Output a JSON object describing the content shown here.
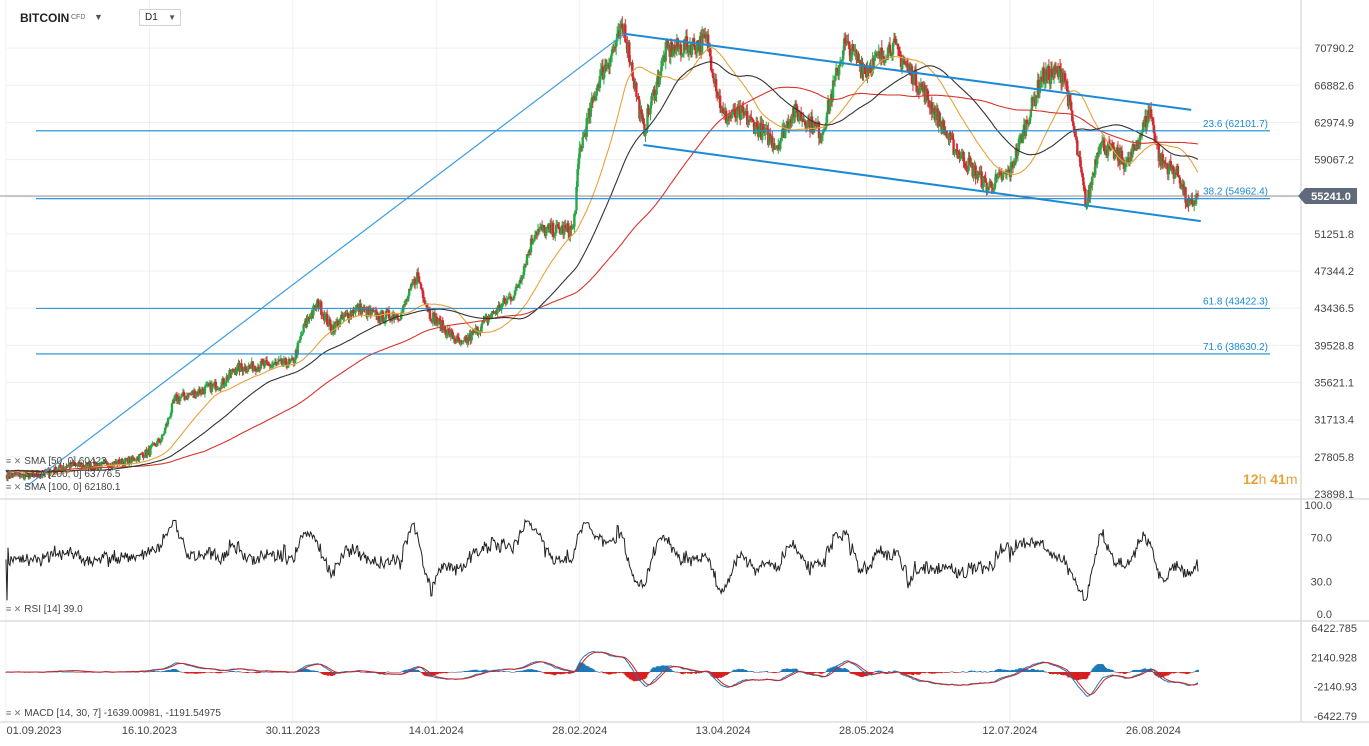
{
  "header": {
    "symbol": "BITCOIN",
    "instrument_type": "CFD",
    "timeframe": "D1"
  },
  "timer": {
    "hours": "12",
    "h": "h",
    "minutes": "41",
    "m": "m"
  },
  "indicator_legend": {
    "sma_50": "SMA [50, 0] 60423",
    "sma_200": "SMA [200, 0] 63776.5",
    "sma_100": "SMA [100, 0] 62180.1",
    "rsi": "RSI [14] 39.0",
    "macd": "MACD [14, 30, 7]  -1639.00981,  -1191.54975"
  },
  "chart_data": [
    {
      "type": "candlestick",
      "title": "BITCOIN",
      "y_axis_ticks": [
        "70790.2",
        "66882.6",
        "62974.9",
        "59067.2",
        "55159.5",
        "51251.8",
        "47344.2",
        "43436.5",
        "39528.8",
        "35621.1",
        "31713.4",
        "27805.8",
        "23898.1"
      ],
      "ylim": [
        23898.1,
        72700
      ],
      "x_axis_ticks": [
        "01.09.2023",
        "16.10.2023",
        "30.11.2023",
        "14.01.2024",
        "28.02.2024",
        "13.04.2024",
        "28.05.2024",
        "12.07.2024",
        "26.08.2024"
      ],
      "current_price": "55241.0",
      "close_path": [
        [
          "2023-09-01",
          25900
        ],
        [
          "2023-09-11",
          25800
        ],
        [
          "2023-09-20",
          26900
        ],
        [
          "2023-09-30",
          26900
        ],
        [
          "2023-10-10",
          27400
        ],
        [
          "2023-10-16",
          28400
        ],
        [
          "2023-10-20",
          29800
        ],
        [
          "2023-10-24",
          33900
        ],
        [
          "2023-10-30",
          34500
        ],
        [
          "2023-11-08",
          35600
        ],
        [
          "2023-11-12",
          37100
        ],
        [
          "2023-11-20",
          37400
        ],
        [
          "2023-11-30",
          37700
        ],
        [
          "2023-12-04",
          41900
        ],
        [
          "2023-12-08",
          44000
        ],
        [
          "2023-12-12",
          41300
        ],
        [
          "2023-12-20",
          43500
        ],
        [
          "2023-12-27",
          42500
        ],
        [
          "2024-01-03",
          42800
        ],
        [
          "2024-01-08",
          46900
        ],
        [
          "2024-01-12",
          42800
        ],
        [
          "2024-01-22",
          39500
        ],
        [
          "2024-01-31",
          42600
        ],
        [
          "2024-02-08",
          45200
        ],
        [
          "2024-02-14",
          51600
        ],
        [
          "2024-02-26",
          51700
        ],
        [
          "2024-02-28",
          60000
        ],
        [
          "2024-03-05",
          67500
        ],
        [
          "2024-03-13",
          73000
        ],
        [
          "2024-03-19",
          62000
        ],
        [
          "2024-03-26",
          70500
        ],
        [
          "2024-04-08",
          71500
        ],
        [
          "2024-04-13",
          63500
        ],
        [
          "2024-04-19",
          63800
        ],
        [
          "2024-04-30",
          60600
        ],
        [
          "2024-05-05",
          64200
        ],
        [
          "2024-05-14",
          61900
        ],
        [
          "2024-05-21",
          71200
        ],
        [
          "2024-05-28",
          68600
        ],
        [
          "2024-06-05",
          71100
        ],
        [
          "2024-06-15",
          66200
        ],
        [
          "2024-06-24",
          60500
        ],
        [
          "2024-07-05",
          56200
        ],
        [
          "2024-07-12",
          57800
        ],
        [
          "2024-07-22",
          67800
        ],
        [
          "2024-07-29",
          68200
        ],
        [
          "2024-08-05",
          54100
        ],
        [
          "2024-08-09",
          60900
        ],
        [
          "2024-08-18",
          58600
        ],
        [
          "2024-08-25",
          64200
        ],
        [
          "2024-08-28",
          59100
        ],
        [
          "2024-09-03",
          57400
        ],
        [
          "2024-09-06",
          54000
        ],
        [
          "2024-09-09",
          55241
        ]
      ],
      "horizontal_levels": [
        {
          "label": "23.6 (62101.7)",
          "value": 62101.7
        },
        {
          "label": "38.2 (54962.4)",
          "value": 54962.4
        },
        {
          "label": "61.8 (43422.3)",
          "value": 43422.3
        },
        {
          "label": "71.6 (38630.2)",
          "value": 38630.2
        }
      ],
      "series": [
        {
          "name": "SMA [50, 0]",
          "color": "#e8a23c"
        },
        {
          "name": "SMA [200, 0]",
          "color": "#d9352e"
        },
        {
          "name": "SMA [100, 0]",
          "color": "#333333"
        }
      ],
      "trend_lines": [
        {
          "from": [
            "2023-09-07",
            24600
          ],
          "to": [
            "2024-03-13",
            72300
          ]
        },
        {
          "from": [
            "2024-03-13",
            72300
          ],
          "to": [
            "2024-09-05",
            64300
          ]
        },
        {
          "from": [
            "2024-03-19",
            60600
          ],
          "to": [
            "2024-09-08",
            52600
          ]
        }
      ]
    },
    {
      "type": "line",
      "title": "RSI [14]",
      "y_axis_ticks": [
        "100.0",
        "70.0",
        "30.0",
        "0.0"
      ],
      "ylim": [
        0,
        100
      ],
      "value": 39.0
    },
    {
      "type": "histogram",
      "title": "MACD [14, 30, 7]",
      "y_axis_ticks": [
        "6422.785",
        "2140.928",
        "-2140.93",
        "-6422.79"
      ],
      "ylim": [
        -6422.79,
        6422.785
      ],
      "values": [
        -1639.00981,
        -1191.54975
      ]
    }
  ]
}
